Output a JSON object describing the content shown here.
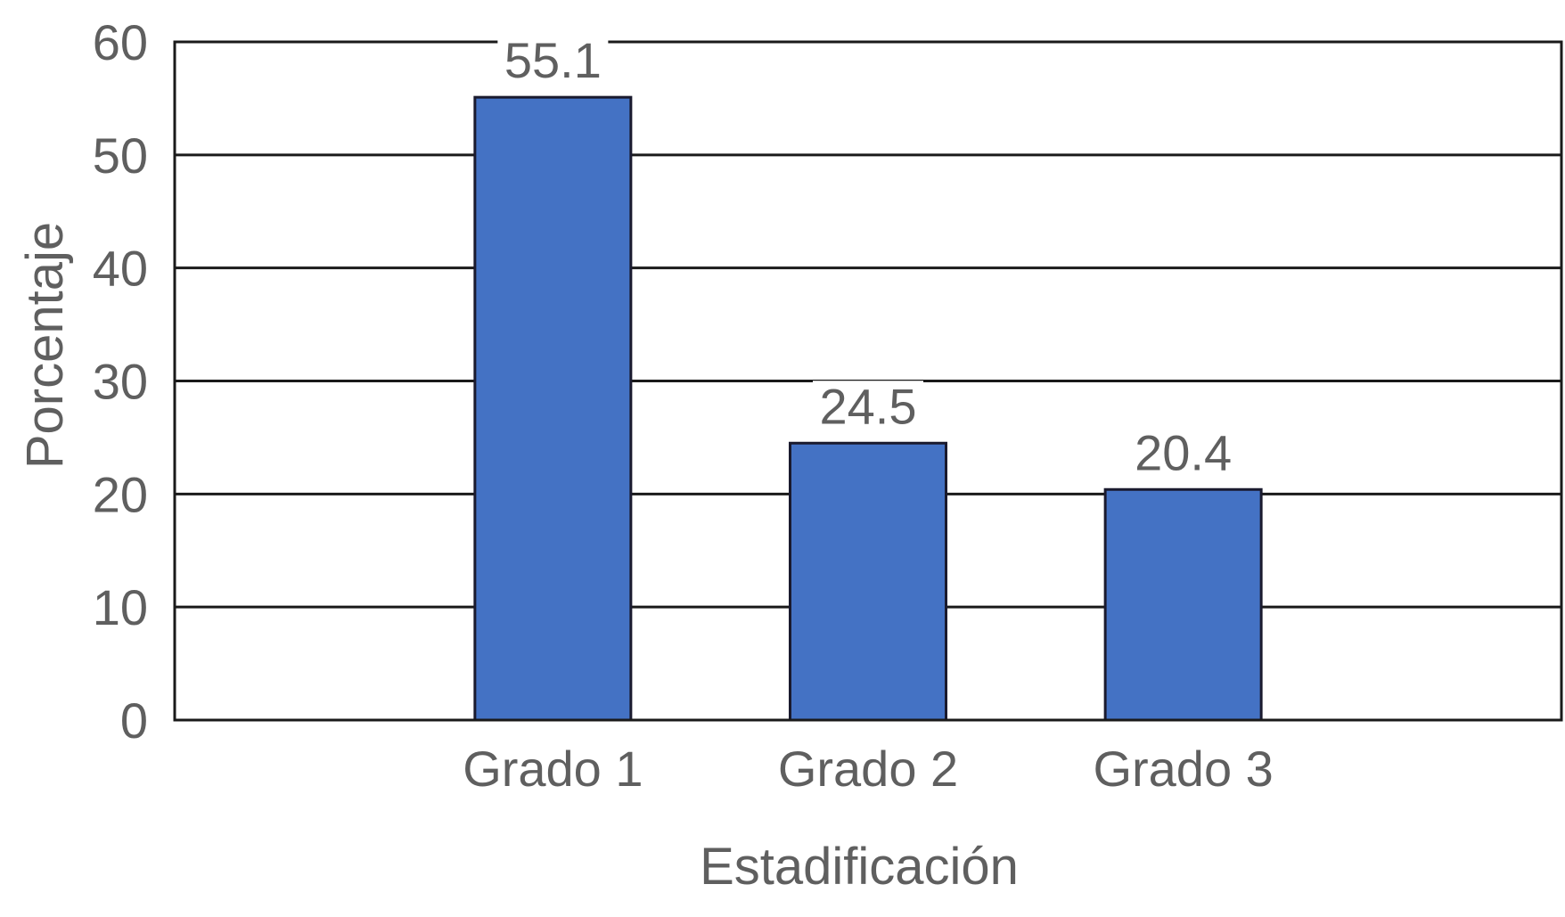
{
  "chart_data": {
    "type": "bar",
    "categories": [
      "Grado 1",
      "Grado 2",
      "Grado 3"
    ],
    "values": [
      55.1,
      24.5,
      20.4
    ],
    "value_labels": [
      "55.1",
      "24.5",
      "20.4"
    ],
    "title": "",
    "xlabel": "Estadificación",
    "ylabel": "Porcentaje",
    "ylim": [
      0,
      60
    ],
    "yticks": [
      "0",
      "10",
      "20",
      "30",
      "40",
      "50",
      "60"
    ],
    "grid": true,
    "legend": "none",
    "colors": {
      "bar_fill": "#4472c4",
      "bar_stroke": "#1a1a2e",
      "grid": "#1a1a1a",
      "text": "#5f5f5f"
    }
  }
}
